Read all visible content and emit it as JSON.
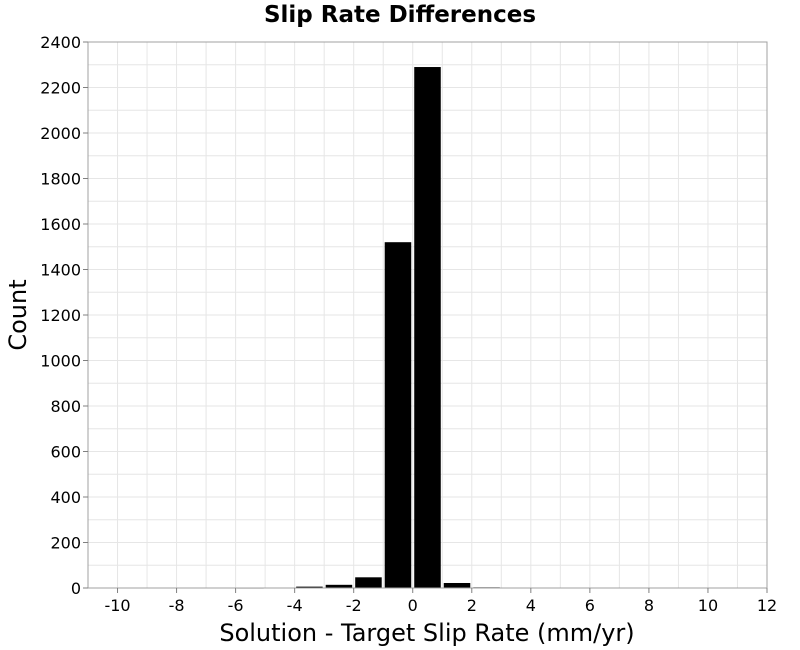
{
  "chart_data": {
    "type": "bar",
    "title": "Slip Rate Differences",
    "xlabel": "Solution - Target Slip Rate (mm/yr)",
    "ylabel": "Count",
    "xlim": [
      -11,
      12
    ],
    "ylim": [
      0,
      2400
    ],
    "x_ticks": [
      -10,
      -8,
      -6,
      -4,
      -2,
      0,
      2,
      4,
      6,
      8,
      10,
      12
    ],
    "y_ticks": [
      0,
      200,
      400,
      600,
      800,
      1000,
      1200,
      1400,
      1600,
      1800,
      2000,
      2200,
      2400
    ],
    "bin_width": 1,
    "bars": [
      {
        "x": -10.5,
        "value": 0
      },
      {
        "x": -9.5,
        "value": 0
      },
      {
        "x": -8.5,
        "value": 0
      },
      {
        "x": -7.5,
        "value": 0
      },
      {
        "x": -6.5,
        "value": 0
      },
      {
        "x": -5.5,
        "value": 2
      },
      {
        "x": -4.5,
        "value": 0
      },
      {
        "x": -3.5,
        "value": 6
      },
      {
        "x": -2.5,
        "value": 14
      },
      {
        "x": -1.5,
        "value": 47
      },
      {
        "x": -0.5,
        "value": 1520
      },
      {
        "x": 0.5,
        "value": 2290
      },
      {
        "x": 1.5,
        "value": 22
      },
      {
        "x": 2.5,
        "value": 3
      },
      {
        "x": 3.5,
        "value": 0
      },
      {
        "x": 4.5,
        "value": 0
      },
      {
        "x": 5.5,
        "value": 0
      },
      {
        "x": 6.5,
        "value": 0
      },
      {
        "x": 7.5,
        "value": 0
      },
      {
        "x": 8.5,
        "value": 0
      },
      {
        "x": 9.5,
        "value": 0
      },
      {
        "x": 10.5,
        "value": 0
      },
      {
        "x": 11.5,
        "value": 0
      }
    ],
    "bar_color": "#000000",
    "grid": true,
    "legend": false
  }
}
